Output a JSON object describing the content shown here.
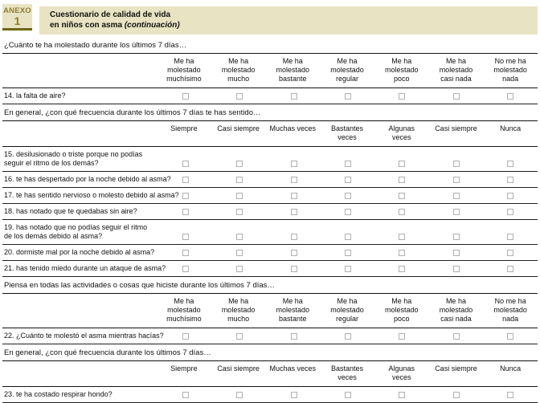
{
  "header": {
    "anexo_label": "ANEXO",
    "anexo_number": "1",
    "title_line1": "Cuestionario de calidad de vida",
    "title_line2": "en niños con asma",
    "title_continuation": "(continuación)"
  },
  "colors": {
    "band_bg": "#e8e4c3",
    "anexo_text": "#8c7d32",
    "olive_rule": "#6e6717",
    "table_line": "#1f1f1f",
    "checkbox_border": "#b0b0b0"
  },
  "headers": {
    "bother": [
      "Me ha molestado muchísimo",
      "Me ha molestado mucho",
      "Me ha molestado bastante",
      "Me ha molestado regular",
      "Me ha molestado poco",
      "Me ha molestado casi nada",
      "No me ha molestado nada"
    ],
    "frequency": [
      "Siempre",
      "Casi siempre",
      "Muchas veces",
      "Bastantes veces",
      "Algunas veces",
      "Casi siempre",
      "Nunca"
    ]
  },
  "sections": [
    {
      "intro": "¿Cuánto te ha molestado durante los últimos 7 días…",
      "questions": [
        "14. la falta de aire?"
      ]
    },
    {
      "intro": "En general, ¿con qué frecuencia durante los últimos 7 días te has sentido…",
      "questions": [
        "15. desilusionado o triste porque no podías\nseguir el ritmo de los demás?",
        "16. te has despertado por la noche debido al asma?",
        "17. te has sentido nervioso o molesto debido al asma?",
        "18. has notado que te quedabas sin aire?",
        "19. has notado que no podías seguir el ritmo\nde los demás debido al asma?",
        "20. dormiste mal por la noche debido al asma?",
        "21. has tenido miedo durante un ataque de asma?"
      ]
    },
    {
      "intro": "Piensa en todas las actividades o cosas que hiciste durante los últimos 7 días…",
      "questions": [
        "22. ¿Cuánto te molestó el asma mientras hacías?"
      ]
    },
    {
      "intro": "En general, ¿con qué frecuencia durante los últimos 7 días…",
      "questions": [
        "23. te ha costado respirar hondo?"
      ]
    }
  ]
}
